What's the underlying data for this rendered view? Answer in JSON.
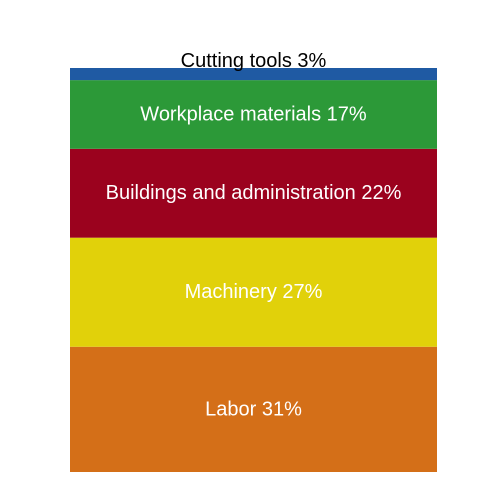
{
  "chart_data": {
    "type": "bar",
    "stacked": true,
    "orientation": "vertical",
    "axes_visible": false,
    "grid": false,
    "legend": "none",
    "unit": "%",
    "segments": [
      {
        "name": "Labor",
        "value": 31,
        "label": "Labor 31%",
        "color": "#d46f18",
        "label_color": "#ffffff"
      },
      {
        "name": "Machinery",
        "value": 27,
        "label": "Machinery 27%",
        "color": "#e1d10a",
        "label_color": "#ffffff"
      },
      {
        "name": "Buildings and administration",
        "value": 22,
        "label": "Buildings and administration 22%",
        "color": "#9b021e",
        "label_color": "#ffffff"
      },
      {
        "name": "Workplace materials",
        "value": 17,
        "label": "Workplace materials 17%",
        "color": "#2c9938",
        "label_color": "#ffffff"
      },
      {
        "name": "Cutting tools",
        "value": 3,
        "label": "Cutting tools 3%",
        "color": "#1f5aa3",
        "label_color": "#000000",
        "label_position": "above"
      }
    ]
  }
}
